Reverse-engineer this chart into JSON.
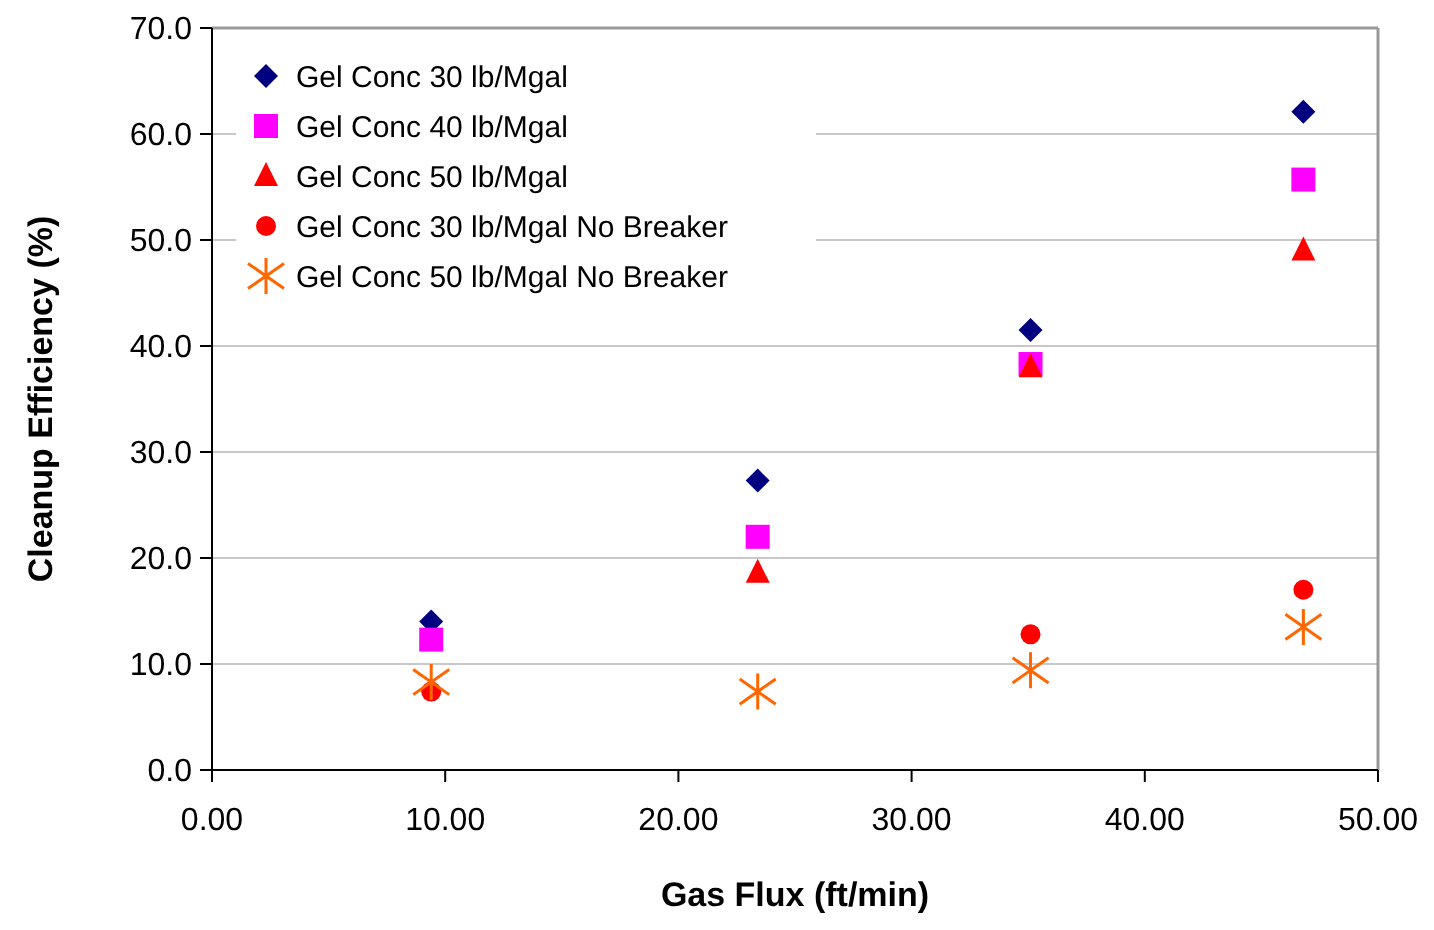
{
  "chart_data": {
    "type": "scatter",
    "xlabel": "Gas Flux (ft/min)",
    "ylabel": "Cleanup Efficiency (%)",
    "xlim": [
      0,
      50
    ],
    "ylim": [
      0,
      70
    ],
    "xticks": [
      {
        "value": 0,
        "label": "0.00"
      },
      {
        "value": 10,
        "label": "10.00"
      },
      {
        "value": 20,
        "label": "20.00"
      },
      {
        "value": 30,
        "label": "30.00"
      },
      {
        "value": 40,
        "label": "40.00"
      },
      {
        "value": 50,
        "label": "50.00"
      }
    ],
    "yticks": [
      {
        "value": 0,
        "label": "0.0"
      },
      {
        "value": 10,
        "label": "10.0"
      },
      {
        "value": 20,
        "label": "20.0"
      },
      {
        "value": 30,
        "label": "30.0"
      },
      {
        "value": 40,
        "label": "40.0"
      },
      {
        "value": 50,
        "label": "50.0"
      },
      {
        "value": 60,
        "label": "60.0"
      },
      {
        "value": 70,
        "label": "70.0"
      }
    ],
    "grid": "y",
    "legend": "top left",
    "x": [
      9.4,
      23.4,
      35.1,
      46.8
    ],
    "series": [
      {
        "name": "Gel Conc 30 lb/Mgal",
        "color": "#000080",
        "marker": "diamond",
        "values": [
          14.0,
          27.3,
          41.5,
          62.1
        ]
      },
      {
        "name": "Gel Conc 40 lb/Mgal",
        "color": "#ff00ff",
        "marker": "square",
        "values": [
          12.3,
          22.0,
          38.3,
          55.7
        ]
      },
      {
        "name": "Gel Conc 50 lb/Mgal",
        "color": "#ff0000",
        "marker": "triangle",
        "values": [
          null,
          18.6,
          38.0,
          49.0
        ]
      },
      {
        "name": "Gel Conc 30 lb/Mgal No Breaker",
        "color": "#ff0000",
        "marker": "circle",
        "values": [
          7.4,
          null,
          12.8,
          17.0
        ]
      },
      {
        "name": "Gel Conc 50 lb/Mgal No Breaker",
        "color": "#ff6600",
        "marker": "cross",
        "values": [
          8.3,
          7.4,
          9.4,
          13.5
        ]
      }
    ]
  }
}
